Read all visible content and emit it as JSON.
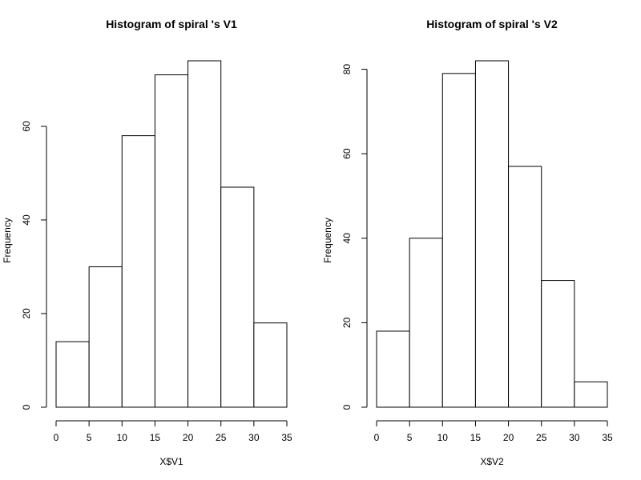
{
  "chart_data": [
    {
      "type": "bar",
      "title": "Histogram of  spiral 's V1",
      "xlabel": "X$V1",
      "ylabel": "Frequency",
      "bins": [
        [
          0,
          5
        ],
        [
          5,
          10
        ],
        [
          10,
          15
        ],
        [
          15,
          20
        ],
        [
          20,
          25
        ],
        [
          25,
          30
        ],
        [
          30,
          35
        ]
      ],
      "values": [
        14,
        30,
        58,
        71,
        74,
        47,
        18
      ],
      "xlim": [
        0,
        35
      ],
      "ylim": [
        0,
        74
      ],
      "xticks": [
        0,
        5,
        10,
        15,
        20,
        25,
        30,
        35
      ],
      "yticks": [
        0,
        20,
        40,
        60
      ],
      "grid": false,
      "bar_fill": "#ffffff",
      "bar_stroke": "#000000"
    },
    {
      "type": "bar",
      "title": "Histogram of  spiral 's V2",
      "xlabel": "X$V2",
      "ylabel": "Frequency",
      "bins": [
        [
          0,
          5
        ],
        [
          5,
          10
        ],
        [
          10,
          15
        ],
        [
          15,
          20
        ],
        [
          20,
          25
        ],
        [
          25,
          30
        ],
        [
          30,
          35
        ]
      ],
      "values": [
        18,
        40,
        79,
        82,
        57,
        30,
        6
      ],
      "xlim": [
        0,
        35
      ],
      "ylim": [
        0,
        82
      ],
      "xticks": [
        0,
        5,
        10,
        15,
        20,
        25,
        30,
        35
      ],
      "yticks": [
        0,
        20,
        40,
        60,
        80
      ],
      "grid": false,
      "bar_fill": "#ffffff",
      "bar_stroke": "#000000"
    }
  ]
}
